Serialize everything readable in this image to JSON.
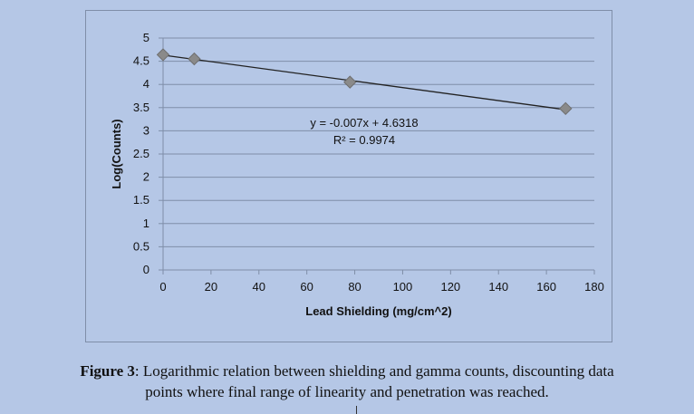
{
  "chart_data": {
    "type": "scatter",
    "xlabel": "Lead Shielding (mg/cm^2)",
    "ylabel": "Log(Counts)",
    "xlim": [
      0,
      180
    ],
    "ylim": [
      0,
      5
    ],
    "x_ticks": [
      "0",
      "20",
      "40",
      "60",
      "80",
      "100",
      "120",
      "140",
      "160",
      "180"
    ],
    "y_ticks": [
      "0",
      "0.5",
      "1",
      "1.5",
      "2",
      "2.5",
      "3",
      "3.5",
      "4",
      "4.5",
      "5"
    ],
    "grid": "horizontal",
    "points": [
      {
        "x": 0,
        "y": 4.64
      },
      {
        "x": 13,
        "y": 4.55
      },
      {
        "x": 78,
        "y": 4.05
      },
      {
        "x": 168,
        "y": 3.48
      }
    ],
    "trendline": {
      "type": "linear",
      "slope": -0.007,
      "intercept": 4.6318,
      "equation": "y = -0.007x + 4.6318",
      "r_squared": "R² = 0.9974"
    },
    "colors": {
      "background": "#b5c7e6",
      "gridline": "#7f8ea8",
      "marker": "#8a8a8a",
      "trendline": "#222222"
    }
  },
  "caption": {
    "label": "Figure 3",
    "line1_rest": ": Logarithmic relation between shielding and gamma counts, discounting data",
    "line2": "points where final range of linearity and penetration was reached."
  }
}
